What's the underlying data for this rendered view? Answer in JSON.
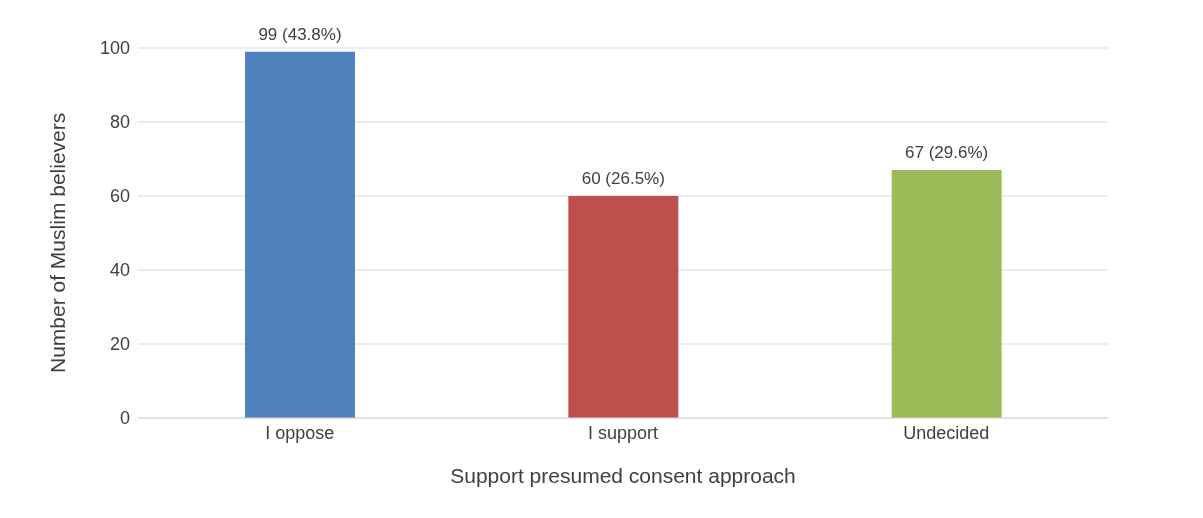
{
  "chart_data": {
    "type": "bar",
    "xlabel": "Support presumed consent approach",
    "ylabel": "Number of Muslim believers",
    "categories": [
      "I oppose",
      "I support",
      "Undecided"
    ],
    "values": [
      99,
      60,
      67
    ],
    "colors": [
      "#4f81bd",
      "#c0504d",
      "#9bbb59"
    ],
    "value_labels": [
      "99 (43.8%)",
      "60 (26.5%)",
      "67 (29.6%)"
    ],
    "ylim": [
      0,
      100
    ],
    "yticks": [
      0,
      20,
      40,
      60,
      80,
      100
    ],
    "grid": "y"
  }
}
